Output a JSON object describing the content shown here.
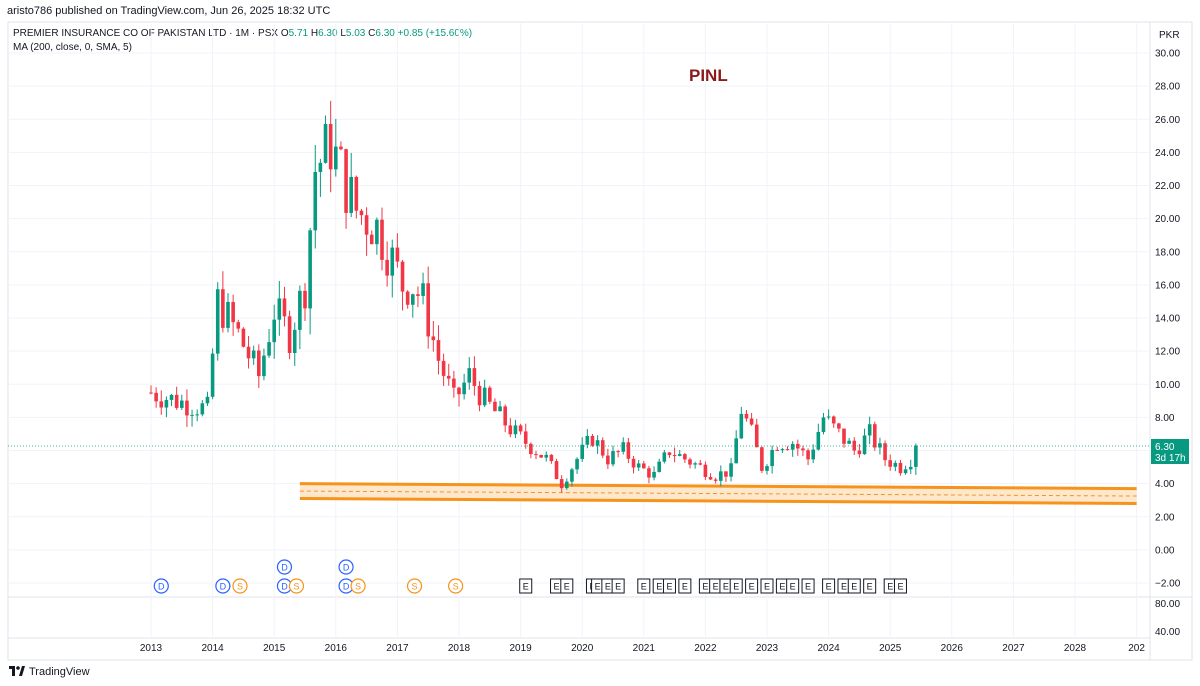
{
  "header": {
    "published": "aristo786 published on TradingView.com, Jun 26, 2025 18:32 UTC"
  },
  "legend": {
    "symbol": "PREMIER INSURANCE CO OF PAKISTAN LTD · 1M · PSX",
    "o_label": "O",
    "o_value": "5.71",
    "h_label": "H",
    "h_value": "6.30",
    "l_label": "L",
    "l_value": "5.03",
    "c_label": "C",
    "c_value": "6.30",
    "change": "+0.85 (+15.60%)",
    "ma": "MA (200, close, 0, SMA, 5)"
  },
  "annotation": {
    "text": "PINL"
  },
  "price_axis": {
    "currency": "PKR",
    "current_price": "6.30",
    "countdown": "3d 17h"
  },
  "brand": {
    "name": "TradingView"
  },
  "colors": {
    "up": "#089981",
    "down": "#f23645",
    "support": "#f7931a",
    "support_fill": "#fde2c0",
    "annotation": "#8b1a1a",
    "events_blue": "#2962ff",
    "events_orange": "#f7931a"
  },
  "chart_data": {
    "type": "candlestick",
    "interval": "1M",
    "y_range": [
      -2.0,
      30.0
    ],
    "y_ticks": [
      30,
      28,
      26,
      24,
      22,
      20,
      18,
      16,
      14,
      12,
      10,
      8,
      6,
      4,
      2,
      0,
      -2
    ],
    "y_tick_labels": [
      "30.00",
      "28.00",
      "26.00",
      "24.00",
      "22.00",
      "20.00",
      "18.00",
      "16.00",
      "14.00",
      "12.00",
      "10.00",
      "8.00",
      "6.00",
      "4.00",
      "2.00",
      "0.00",
      "−2.00"
    ],
    "x_tick_labels": [
      "2013",
      "2014",
      "2015",
      "2016",
      "2017",
      "2018",
      "2019",
      "2020",
      "2021",
      "2022",
      "2023",
      "2024",
      "2025",
      "2026",
      "2027",
      "2028",
      "202"
    ],
    "sub_axis_ticks": [
      "80.00",
      "40.00"
    ],
    "support_zone": {
      "upper": {
        "from": [
          "2015-06",
          4.0
        ],
        "to": [
          "2029-01",
          3.7
        ]
      },
      "lower": {
        "from": [
          "2015-06",
          3.1
        ],
        "to": [
          "2029-01",
          2.8
        ]
      },
      "mid": {
        "from": [
          "2015-06",
          3.55
        ],
        "to": [
          "2029-01",
          3.25
        ]
      }
    },
    "anchor_points": [
      [
        "2013-01",
        9.5
      ],
      [
        "2013-06",
        9.0
      ],
      [
        "2013-12",
        8.5
      ],
      [
        "2014-02",
        15.0
      ],
      [
        "2014-06",
        13.0
      ],
      [
        "2014-10",
        10.5
      ],
      [
        "2015-01",
        14.5
      ],
      [
        "2015-04",
        13.0
      ],
      [
        "2015-07",
        16.0
      ],
      [
        "2015-09",
        23.0
      ],
      [
        "2015-12",
        24.5
      ],
      [
        "2016-03",
        22.0
      ],
      [
        "2016-05",
        20.5
      ],
      [
        "2016-09",
        19.5
      ],
      [
        "2016-12",
        17.5
      ],
      [
        "2017-02",
        16.0
      ],
      [
        "2017-04",
        16.0
      ],
      [
        "2017-06",
        15.0
      ],
      [
        "2017-09",
        11.5
      ],
      [
        "2017-12",
        9.0
      ],
      [
        "2018-03",
        10.5
      ],
      [
        "2018-06",
        9.0
      ],
      [
        "2018-09",
        8.0
      ],
      [
        "2018-12",
        7.0
      ],
      [
        "2019-06",
        5.5
      ],
      [
        "2019-09",
        4.0
      ],
      [
        "2019-12",
        5.5
      ],
      [
        "2020-03",
        6.8
      ],
      [
        "2020-06",
        5.5
      ],
      [
        "2020-09",
        6.0
      ],
      [
        "2020-12",
        5.0
      ],
      [
        "2021-03",
        4.5
      ],
      [
        "2021-06",
        6.0
      ],
      [
        "2021-09",
        5.5
      ],
      [
        "2021-12",
        5.0
      ],
      [
        "2022-03",
        4.5
      ],
      [
        "2022-06",
        4.8
      ],
      [
        "2022-08",
        8.5
      ],
      [
        "2022-10",
        7.0
      ],
      [
        "2022-12",
        5.0
      ],
      [
        "2023-03",
        6.5
      ],
      [
        "2023-06",
        6.5
      ],
      [
        "2023-09",
        5.5
      ],
      [
        "2023-12",
        8.0
      ],
      [
        "2024-03",
        7.0
      ],
      [
        "2024-06",
        6.0
      ],
      [
        "2024-09",
        7.0
      ],
      [
        "2024-12",
        5.5
      ],
      [
        "2025-03",
        5.0
      ],
      [
        "2025-05",
        5.5
      ],
      [
        "2025-06",
        6.3
      ]
    ],
    "events": {
      "dividends_D": [
        "2013-03",
        "2014-03",
        "2015-03",
        "2016-03"
      ],
      "splits_S": [
        "2014-04",
        "2015-03",
        "2016-03",
        "2017-02",
        "2017-10"
      ],
      "earnings_E": [
        "2019-02",
        "2019-08",
        "2019-10",
        "2020-03",
        "2020-04",
        "2020-06",
        "2020-08",
        "2021-01",
        "2021-04",
        "2021-06",
        "2021-09",
        "2022-01",
        "2022-03",
        "2022-05",
        "2022-07",
        "2022-10",
        "2023-01",
        "2023-04",
        "2023-06",
        "2023-09",
        "2024-01",
        "2024-04",
        "2024-06",
        "2024-09",
        "2025-01",
        "2025-03"
      ]
    }
  }
}
